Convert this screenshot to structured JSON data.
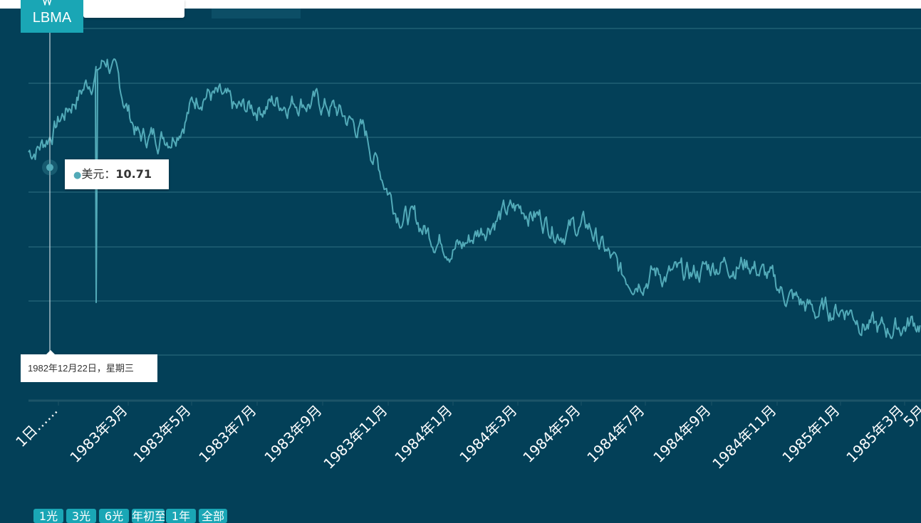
{
  "logo": {
    "text": "LBMA"
  },
  "tooltip": {
    "series": "美元：",
    "value": "10.71"
  },
  "crosshair": {
    "date_label": "1982年12月22日，星期三"
  },
  "range_buttons": [
    "1光",
    "3光",
    "6光",
    "年初至",
    "1年",
    "全部"
  ],
  "colors": {
    "background": "#034058",
    "line": "#52aab8",
    "accent": "#1aa6b5"
  },
  "chart_data": {
    "type": "line",
    "series": [
      {
        "name": "美元"
      }
    ],
    "x_tick_labels": [
      "1日……",
      "1983年3月",
      "1983年5月",
      "1983年7月",
      "1983年9月",
      "1983年11月",
      "1984年1月",
      "1984年3月",
      "1984年5月",
      "1984年7月",
      "1984年9月",
      "1984年11月",
      "1985年1月",
      "1985年3月",
      "5月"
    ],
    "x": [
      "1982-12",
      "1983-01",
      "1983-02",
      "1983-03",
      "1983-04",
      "1983-05",
      "1983-06",
      "1983-07",
      "1983-08",
      "1983-09",
      "1983-10",
      "1983-11",
      "1983-12",
      "1984-01",
      "1984-02",
      "1984-03",
      "1984-04",
      "1984-05",
      "1984-06",
      "1984-07",
      "1984-08",
      "1984-09",
      "1984-10",
      "1984-11",
      "1984-12",
      "1985-01",
      "1985-02",
      "1985-03",
      "1985-04"
    ],
    "values": [
      10.8,
      11.2,
      12.1,
      12.9,
      11.3,
      11.4,
      12.3,
      11.8,
      12.0,
      12.1,
      11.9,
      11.4,
      9.9,
      9.4,
      9.1,
      9.7,
      9.9,
      9.5,
      9.5,
      8.5,
      8.6,
      8.5,
      8.8,
      8.8,
      8.2,
      7.8,
      7.9,
      7.4,
      7.6
    ],
    "highlight_point": {
      "x": "1982-12-22",
      "y": 10.71
    },
    "grid": true,
    "legend": "none"
  }
}
